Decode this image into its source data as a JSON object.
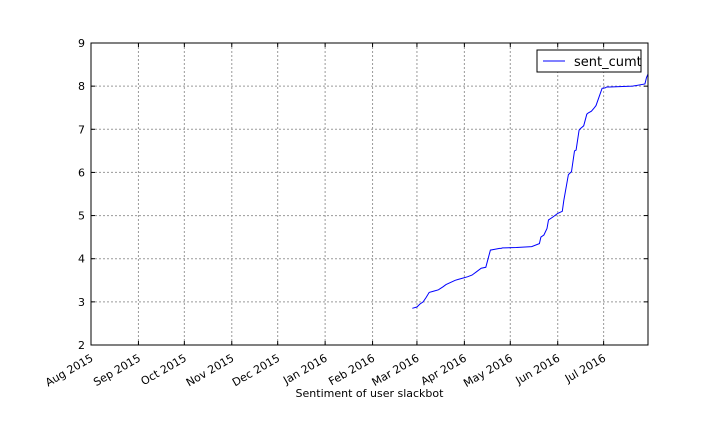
{
  "chart_data": {
    "type": "line",
    "title": "",
    "xlabel": "Sentiment of user slackbot",
    "ylabel": "",
    "xlim": [
      "2015-08-01",
      "2016-07-30"
    ],
    "ylim": [
      2,
      9
    ],
    "grid": true,
    "legend": "top-right",
    "line_color": "#0000ff",
    "x_ticks": [
      {
        "date": "2015-08-01",
        "label": "Aug 2015"
      },
      {
        "date": "2015-09-01",
        "label": "Sep 2015"
      },
      {
        "date": "2015-10-01",
        "label": "Oct 2015"
      },
      {
        "date": "2015-11-01",
        "label": "Nov 2015"
      },
      {
        "date": "2015-12-01",
        "label": "Dec 2015"
      },
      {
        "date": "2016-01-01",
        "label": "Jan 2016"
      },
      {
        "date": "2016-02-01",
        "label": "Feb 2016"
      },
      {
        "date": "2016-03-01",
        "label": "Mar 2016"
      },
      {
        "date": "2016-04-01",
        "label": "Apr 2016"
      },
      {
        "date": "2016-05-01",
        "label": "May 2016"
      },
      {
        "date": "2016-06-01",
        "label": "Jun 2016"
      },
      {
        "date": "2016-07-01",
        "label": "Jul 2016"
      }
    ],
    "y_ticks": [
      "2",
      "3",
      "4",
      "5",
      "6",
      "7",
      "8",
      "9"
    ],
    "series": [
      {
        "name": "sent_cumt",
        "x": [
          "2016-02-27",
          "2016-03-01",
          "2016-03-03",
          "2016-03-05",
          "2016-03-07",
          "2016-03-09",
          "2016-03-12",
          "2016-03-15",
          "2016-03-18",
          "2016-03-20",
          "2016-03-23",
          "2016-03-26",
          "2016-03-28",
          "2016-03-31",
          "2016-04-03",
          "2016-04-06",
          "2016-04-09",
          "2016-04-12",
          "2016-04-15",
          "2016-04-18",
          "2016-04-21",
          "2016-04-24",
          "2016-04-25",
          "2016-04-26",
          "2016-04-27",
          "2016-05-05",
          "2016-05-15",
          "2016-05-20",
          "2016-05-21",
          "2016-05-23",
          "2016-05-25",
          "2016-05-26",
          "2016-05-29",
          "2016-06-01",
          "2016-06-04",
          "2016-06-05",
          "2016-06-08",
          "2016-06-10",
          "2016-06-12",
          "2016-06-13",
          "2016-06-15",
          "2016-06-16",
          "2016-06-18",
          "2016-06-20",
          "2016-06-21",
          "2016-06-23",
          "2016-06-25",
          "2016-06-26",
          "2016-06-30",
          "2016-07-02",
          "2016-07-03",
          "2016-07-05",
          "2016-07-20",
          "2016-07-28",
          "2016-07-29",
          "2016-07-30"
        ],
        "y": [
          2.85,
          2.88,
          2.95,
          3.0,
          3.1,
          3.22,
          3.25,
          3.28,
          3.35,
          3.4,
          3.45,
          3.5,
          3.52,
          3.55,
          3.58,
          3.62,
          3.7,
          3.78,
          3.8,
          4.2,
          4.22,
          4.24,
          4.24,
          4.25,
          4.25,
          4.26,
          4.28,
          4.35,
          4.5,
          4.55,
          4.7,
          4.9,
          4.97,
          5.05,
          5.1,
          5.35,
          5.95,
          6.02,
          6.5,
          6.52,
          6.98,
          7.02,
          7.08,
          7.35,
          7.38,
          7.42,
          7.5,
          7.55,
          7.95,
          7.96,
          7.98,
          7.98,
          8.0,
          8.05,
          8.2,
          8.28
        ]
      }
    ]
  }
}
